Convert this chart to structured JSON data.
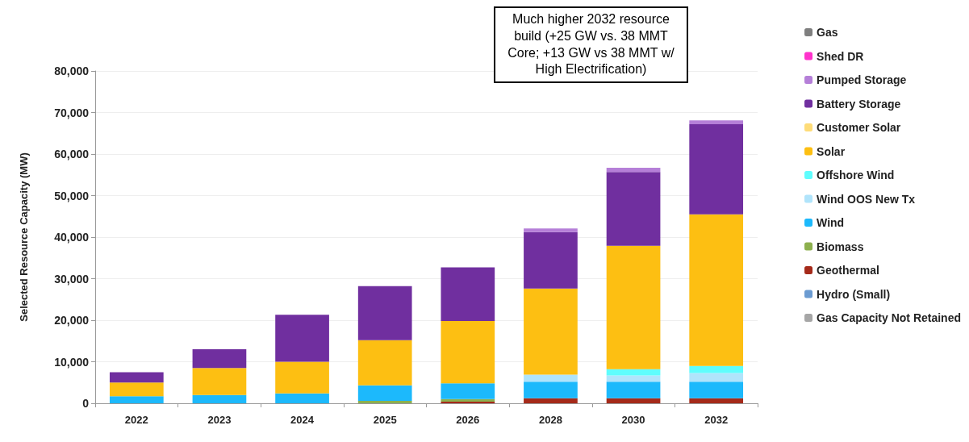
{
  "chart_data": {
    "type": "bar",
    "stacked": true,
    "ylabel": "Selected Resource Capacity (MW)",
    "categories": [
      "2022",
      "2023",
      "2024",
      "2025",
      "2026",
      "2028",
      "2030",
      "2032"
    ],
    "ylim": [
      0,
      80000
    ],
    "yticks": [
      {
        "value": 0,
        "label": "0"
      },
      {
        "value": 10000,
        "label": "10,000"
      },
      {
        "value": 20000,
        "label": "20,000"
      },
      {
        "value": 30000,
        "label": "30,000"
      },
      {
        "value": 40000,
        "label": "40,000"
      },
      {
        "value": 50000,
        "label": "50,000"
      },
      {
        "value": 60000,
        "label": "60,000"
      },
      {
        "value": 70000,
        "label": "70,000"
      },
      {
        "value": 80000,
        "label": "80,000"
      }
    ],
    "grid": "y",
    "legend": "right",
    "annotations": [
      "Much higher 2032 resource build (+25 GW vs. 38 MMT Core; +13 GW vs 38 MMT w/ High Electrification)"
    ],
    "series": [
      {
        "name": "Gas Capacity Not Retained",
        "color": "#a6a6a6",
        "values": [
          null,
          null,
          null,
          null,
          null,
          null,
          null,
          null
        ]
      },
      {
        "name": "Hydro (Small)",
        "color": "#6b9bd1",
        "values": [
          null,
          null,
          null,
          null,
          null,
          null,
          null,
          null
        ]
      },
      {
        "name": "Geothermal",
        "color": "#a52a1a",
        "values": [
          null,
          null,
          null,
          null,
          400,
          1200,
          1200,
          1200
        ]
      },
      {
        "name": "Biomass",
        "color": "#8db04e",
        "values": [
          null,
          null,
          null,
          600,
          600,
          null,
          null,
          null
        ]
      },
      {
        "name": "Wind",
        "color": "#1cb9fc",
        "values": [
          1700,
          2000,
          2400,
          3700,
          3800,
          4000,
          4000,
          4000
        ]
      },
      {
        "name": "Wind OOS New Tx",
        "color": "#b0e4fb",
        "values": [
          null,
          null,
          null,
          null,
          null,
          1700,
          1500,
          2100
        ]
      },
      {
        "name": "Offshore Wind",
        "color": "#5ffdfd",
        "values": [
          null,
          null,
          null,
          null,
          null,
          null,
          1500,
          1700
        ]
      },
      {
        "name": "Solar",
        "color": "#fdbf12",
        "values": [
          3300,
          6500,
          7600,
          10900,
          15000,
          20700,
          29700,
          36500
        ]
      },
      {
        "name": "Customer Solar",
        "color": "#fedc78",
        "values": [
          null,
          null,
          null,
          null,
          null,
          null,
          null,
          null
        ]
      },
      {
        "name": "Battery Storage",
        "color": "#702f9f",
        "values": [
          2500,
          4500,
          11300,
          13000,
          12900,
          13600,
          17800,
          21700
        ]
      },
      {
        "name": "Pumped Storage",
        "color": "#b57fd8",
        "values": [
          null,
          null,
          null,
          null,
          null,
          900,
          1000,
          900
        ]
      },
      {
        "name": "Shed DR",
        "color": "#ff33cc",
        "values": [
          null,
          null,
          null,
          null,
          null,
          null,
          null,
          null
        ]
      },
      {
        "name": "Gas",
        "color": "#7f7f7f",
        "values": [
          null,
          null,
          null,
          null,
          null,
          null,
          null,
          null
        ]
      }
    ]
  }
}
